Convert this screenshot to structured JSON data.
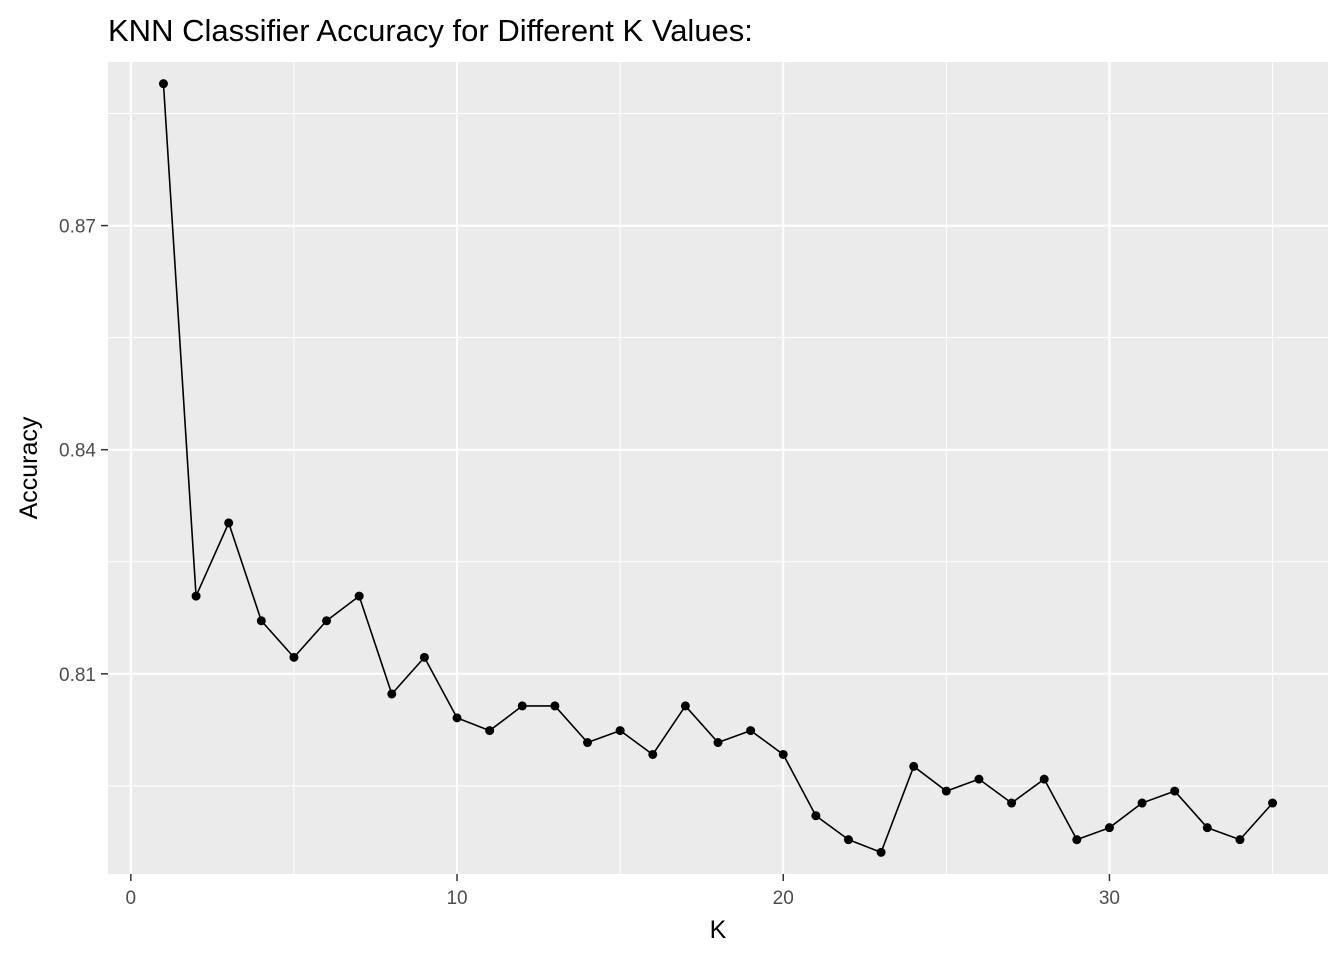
{
  "chart_data": {
    "type": "line",
    "title": "KNN Classifier Accuracy for Different K Values:",
    "xlabel": "K",
    "ylabel": "Accuracy",
    "x": [
      1,
      2,
      3,
      4,
      5,
      6,
      7,
      8,
      9,
      10,
      11,
      12,
      13,
      14,
      15,
      16,
      17,
      18,
      19,
      20,
      21,
      22,
      23,
      24,
      25,
      26,
      27,
      28,
      29,
      30,
      31,
      32,
      33,
      34,
      35
    ],
    "series": [
      {
        "values": [
          0.889,
          0.8204,
          0.8302,
          0.8171,
          0.8122,
          0.8171,
          0.8204,
          0.8073,
          0.8122,
          0.8041,
          0.8024,
          0.8057,
          0.8057,
          0.8008,
          0.8024,
          0.7992,
          0.8057,
          0.8008,
          0.8024,
          0.7992,
          0.791,
          0.7878,
          0.7861,
          0.7976,
          0.7943,
          0.7959,
          0.7927,
          0.7959,
          0.7878,
          0.7894,
          0.7927,
          0.7943,
          0.7894,
          0.7878,
          0.7927
        ],
        "color": "#000000"
      }
    ],
    "xlim": [
      -0.7,
      36.7
    ],
    "ylim": [
      0.7832,
      0.8919
    ],
    "xticks": [
      0,
      10,
      20,
      30
    ],
    "xtick_labels": [
      "0",
      "10",
      "20",
      "30"
    ],
    "yticks": [
      0.81,
      0.84,
      0.87
    ],
    "ytick_labels": [
      "0.81",
      "0.84",
      "0.87"
    ],
    "x_minor": [
      5,
      15,
      25,
      35
    ],
    "y_minor": [
      0.795,
      0.825,
      0.855,
      0.885
    ],
    "panel_color": "#ebebeb",
    "grid_color": "#ffffff",
    "grid": true,
    "legend": "none"
  }
}
